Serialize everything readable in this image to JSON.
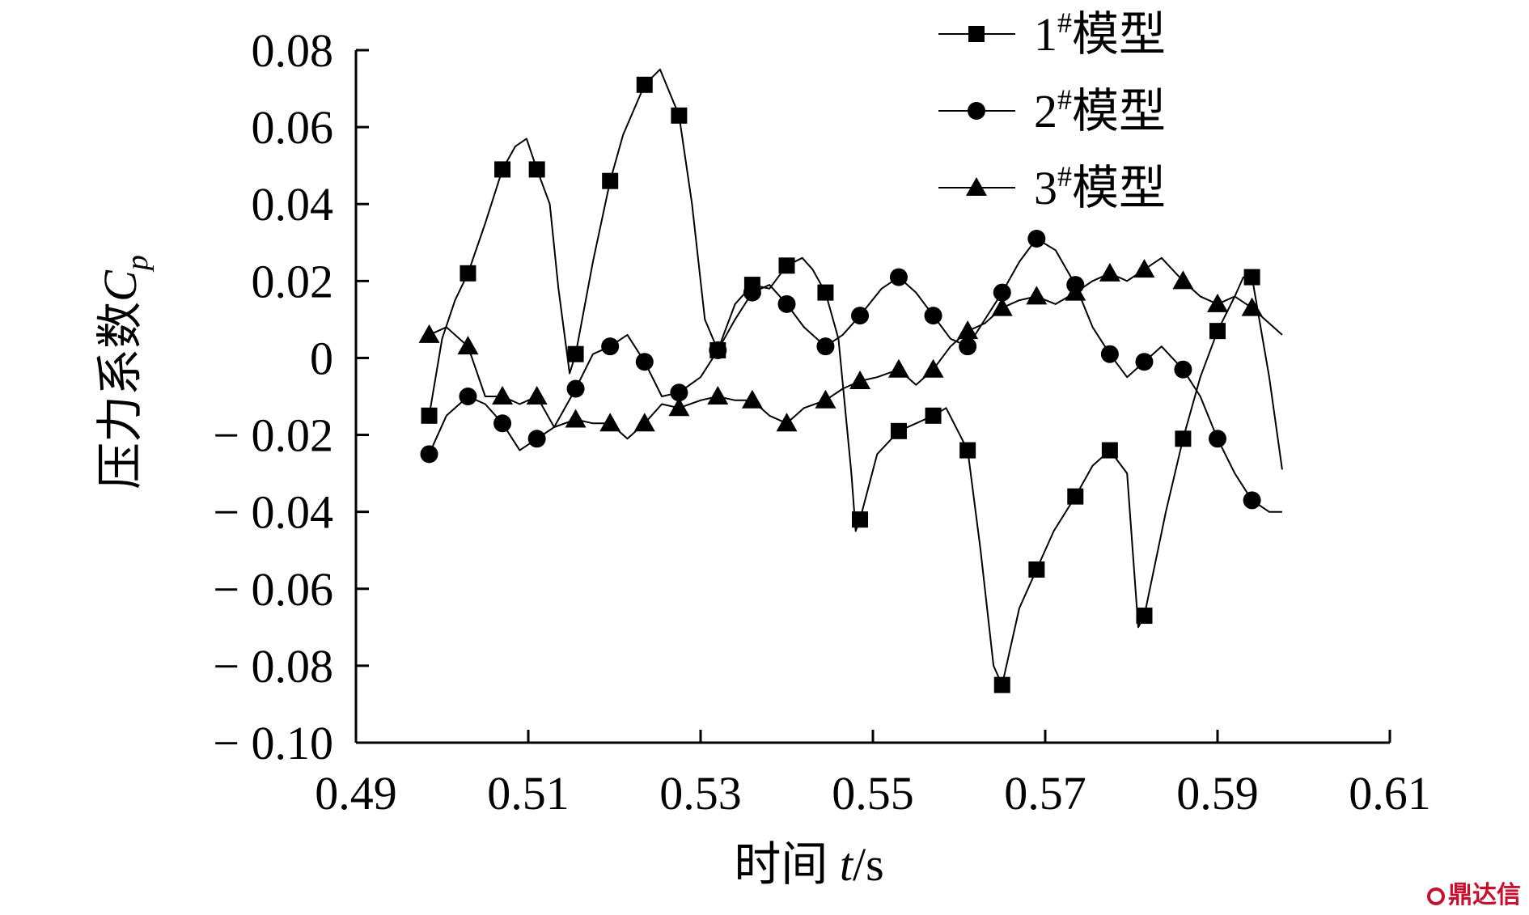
{
  "chart_data": {
    "type": "line",
    "xlabel": {
      "prefix": "时间 ",
      "var": "t",
      "suffix": "/s"
    },
    "ylabel": {
      "prefix": "压力系数",
      "var": "C",
      "sub": "p"
    },
    "xlim": [
      0.49,
      0.61
    ],
    "ylim": [
      -0.1,
      0.08
    ],
    "xticks": [
      "0.49",
      "0.51",
      "0.53",
      "0.55",
      "0.57",
      "0.59",
      "0.61"
    ],
    "yticks": [
      "0.08",
      "0.06",
      "0.04",
      "0.02",
      "0",
      "− 0.02",
      "− 0.04",
      "− 0.06",
      "− 0.08",
      "− 0.10"
    ],
    "legend_position": "top-center",
    "series": [
      {
        "name": "1#模型",
        "label_num": "1",
        "label_sup": "#",
        "label_text": "模型",
        "marker": "square",
        "x": [
          0.4985,
          0.503,
          0.507,
          0.511,
          0.5155,
          0.5195,
          0.5235,
          0.5275,
          0.532,
          0.536,
          0.54,
          0.5445,
          0.5485,
          0.553,
          0.557,
          0.561,
          0.565,
          0.569,
          0.5735,
          0.5775,
          0.5815,
          0.586,
          0.59,
          0.594
        ],
        "y": [
          -0.015,
          0.022,
          0.049,
          0.049,
          0.001,
          0.046,
          0.071,
          0.063,
          0.002,
          0.019,
          0.024,
          0.017,
          -0.042,
          -0.019,
          -0.015,
          -0.024,
          -0.085,
          -0.055,
          -0.036,
          -0.024,
          -0.067,
          -0.021,
          0.007,
          0.021
        ],
        "curve": [
          [
            0.4985,
            -0.015
          ],
          [
            0.5,
            0.005
          ],
          [
            0.5015,
            0.015
          ],
          [
            0.503,
            0.022
          ],
          [
            0.505,
            0.035
          ],
          [
            0.507,
            0.049
          ],
          [
            0.5085,
            0.055
          ],
          [
            0.5098,
            0.057
          ],
          [
            0.511,
            0.049
          ],
          [
            0.5125,
            0.04
          ],
          [
            0.5135,
            0.018
          ],
          [
            0.5148,
            -0.004
          ],
          [
            0.5155,
            0.001
          ],
          [
            0.5175,
            0.025
          ],
          [
            0.5195,
            0.046
          ],
          [
            0.521,
            0.058
          ],
          [
            0.5235,
            0.071
          ],
          [
            0.5253,
            0.075
          ],
          [
            0.5275,
            0.063
          ],
          [
            0.529,
            0.04
          ],
          [
            0.5305,
            0.01
          ],
          [
            0.532,
            0.002
          ],
          [
            0.534,
            0.014
          ],
          [
            0.536,
            0.019
          ],
          [
            0.538,
            0.018
          ],
          [
            0.54,
            0.024
          ],
          [
            0.5418,
            0.026
          ],
          [
            0.543,
            0.023
          ],
          [
            0.5445,
            0.017
          ],
          [
            0.546,
            0.005
          ],
          [
            0.5475,
            -0.03
          ],
          [
            0.548,
            -0.045
          ],
          [
            0.5485,
            -0.042
          ],
          [
            0.5505,
            -0.025
          ],
          [
            0.553,
            -0.019
          ],
          [
            0.555,
            -0.017
          ],
          [
            0.557,
            -0.015
          ],
          [
            0.5585,
            -0.013
          ],
          [
            0.561,
            -0.024
          ],
          [
            0.5625,
            -0.05
          ],
          [
            0.564,
            -0.08
          ],
          [
            0.565,
            -0.085
          ],
          [
            0.567,
            -0.065
          ],
          [
            0.569,
            -0.055
          ],
          [
            0.571,
            -0.045
          ],
          [
            0.5735,
            -0.036
          ],
          [
            0.5755,
            -0.028
          ],
          [
            0.5775,
            -0.024
          ],
          [
            0.5795,
            -0.03
          ],
          [
            0.5808,
            -0.07
          ],
          [
            0.5815,
            -0.067
          ],
          [
            0.584,
            -0.04
          ],
          [
            0.586,
            -0.021
          ],
          [
            0.588,
            -0.005
          ],
          [
            0.59,
            0.007
          ],
          [
            0.592,
            0.016
          ],
          [
            0.593,
            0.021
          ],
          [
            0.594,
            0.021
          ],
          [
            0.596,
            -0.005
          ],
          [
            0.5975,
            -0.029
          ]
        ]
      },
      {
        "name": "2#模型",
        "label_num": "2",
        "label_sup": "#",
        "label_text": "模型",
        "marker": "circle",
        "x": [
          0.4985,
          0.503,
          0.507,
          0.511,
          0.5155,
          0.5195,
          0.5235,
          0.5275,
          0.532,
          0.536,
          0.54,
          0.5445,
          0.5485,
          0.553,
          0.557,
          0.561,
          0.565,
          0.569,
          0.5735,
          0.5775,
          0.5815,
          0.586,
          0.59,
          0.594
        ],
        "y": [
          -0.025,
          -0.01,
          -0.017,
          -0.021,
          -0.008,
          0.003,
          -0.001,
          -0.009,
          0.002,
          0.017,
          0.014,
          0.003,
          0.011,
          0.021,
          0.011,
          0.003,
          0.017,
          0.031,
          0.019,
          0.001,
          -0.001,
          -0.003,
          -0.021,
          -0.037
        ],
        "curve": [
          [
            0.4985,
            -0.025
          ],
          [
            0.5005,
            -0.015
          ],
          [
            0.503,
            -0.01
          ],
          [
            0.505,
            -0.012
          ],
          [
            0.507,
            -0.017
          ],
          [
            0.509,
            -0.024
          ],
          [
            0.511,
            -0.021
          ],
          [
            0.513,
            -0.018
          ],
          [
            0.5155,
            -0.008
          ],
          [
            0.5175,
            0.001
          ],
          [
            0.5195,
            0.003
          ],
          [
            0.5215,
            0.006
          ],
          [
            0.5235,
            -0.001
          ],
          [
            0.5255,
            -0.01
          ],
          [
            0.5275,
            -0.009
          ],
          [
            0.53,
            -0.005
          ],
          [
            0.532,
            0.002
          ],
          [
            0.534,
            0.01
          ],
          [
            0.536,
            0.017
          ],
          [
            0.538,
            0.019
          ],
          [
            0.54,
            0.014
          ],
          [
            0.542,
            0.008
          ],
          [
            0.5445,
            0.003
          ],
          [
            0.5465,
            0.006
          ],
          [
            0.5485,
            0.011
          ],
          [
            0.551,
            0.018
          ],
          [
            0.553,
            0.021
          ],
          [
            0.555,
            0.017
          ],
          [
            0.557,
            0.011
          ],
          [
            0.559,
            0.005
          ],
          [
            0.561,
            0.003
          ],
          [
            0.563,
            0.01
          ],
          [
            0.565,
            0.017
          ],
          [
            0.567,
            0.025
          ],
          [
            0.569,
            0.031
          ],
          [
            0.5712,
            0.028
          ],
          [
            0.5735,
            0.019
          ],
          [
            0.5755,
            0.008
          ],
          [
            0.5775,
            0.001
          ],
          [
            0.5795,
            -0.005
          ],
          [
            0.5815,
            -0.001
          ],
          [
            0.5835,
            0.003
          ],
          [
            0.586,
            -0.003
          ],
          [
            0.588,
            -0.01
          ],
          [
            0.59,
            -0.021
          ],
          [
            0.592,
            -0.03
          ],
          [
            0.594,
            -0.037
          ],
          [
            0.596,
            -0.04
          ],
          [
            0.5975,
            -0.04
          ]
        ]
      },
      {
        "name": "3#模型",
        "label_num": "3",
        "label_sup": "#",
        "label_text": "模型",
        "marker": "triangle",
        "x": [
          0.4985,
          0.503,
          0.507,
          0.511,
          0.5155,
          0.5195,
          0.5235,
          0.5275,
          0.532,
          0.536,
          0.54,
          0.5445,
          0.5485,
          0.553,
          0.557,
          0.561,
          0.565,
          0.569,
          0.5735,
          0.5775,
          0.5815,
          0.586,
          0.59,
          0.594
        ],
        "y": [
          0.006,
          0.003,
          -0.01,
          -0.01,
          -0.016,
          -0.017,
          -0.017,
          -0.013,
          -0.01,
          -0.011,
          -0.017,
          -0.011,
          -0.006,
          -0.003,
          -0.003,
          0.007,
          0.013,
          0.016,
          0.017,
          0.022,
          0.023,
          0.02,
          0.014,
          0.013
        ],
        "curve": [
          [
            0.4985,
            0.006
          ],
          [
            0.5005,
            0.008
          ],
          [
            0.503,
            0.003
          ],
          [
            0.505,
            -0.01
          ],
          [
            0.507,
            -0.01
          ],
          [
            0.509,
            -0.012
          ],
          [
            0.511,
            -0.01
          ],
          [
            0.513,
            -0.018
          ],
          [
            0.5155,
            -0.016
          ],
          [
            0.5175,
            -0.017
          ],
          [
            0.5195,
            -0.017
          ],
          [
            0.5215,
            -0.021
          ],
          [
            0.5235,
            -0.017
          ],
          [
            0.5255,
            -0.012
          ],
          [
            0.5275,
            -0.013
          ],
          [
            0.53,
            -0.011
          ],
          [
            0.532,
            -0.01
          ],
          [
            0.534,
            -0.011
          ],
          [
            0.536,
            -0.011
          ],
          [
            0.538,
            -0.015
          ],
          [
            0.54,
            -0.017
          ],
          [
            0.542,
            -0.013
          ],
          [
            0.5445,
            -0.011
          ],
          [
            0.5465,
            -0.008
          ],
          [
            0.5485,
            -0.006
          ],
          [
            0.5505,
            -0.005
          ],
          [
            0.553,
            -0.003
          ],
          [
            0.555,
            -0.007
          ],
          [
            0.557,
            -0.003
          ],
          [
            0.559,
            0.003
          ],
          [
            0.561,
            0.007
          ],
          [
            0.563,
            0.009
          ],
          [
            0.565,
            0.013
          ],
          [
            0.567,
            0.015
          ],
          [
            0.569,
            0.016
          ],
          [
            0.5712,
            0.014
          ],
          [
            0.5735,
            0.017
          ],
          [
            0.5755,
            0.02
          ],
          [
            0.5775,
            0.022
          ],
          [
            0.5795,
            0.02
          ],
          [
            0.5815,
            0.023
          ],
          [
            0.5835,
            0.026
          ],
          [
            0.586,
            0.02
          ],
          [
            0.588,
            0.016
          ],
          [
            0.59,
            0.014
          ],
          [
            0.592,
            0.016
          ],
          [
            0.594,
            0.013
          ],
          [
            0.596,
            0.009
          ],
          [
            0.5975,
            0.006
          ]
        ]
      }
    ]
  },
  "watermark": {
    "text": "鼎达信",
    "color": "#c8102e"
  }
}
